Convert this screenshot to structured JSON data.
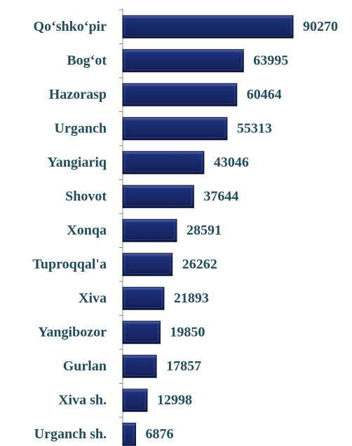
{
  "chart_data": {
    "type": "bar",
    "orientation": "horizontal",
    "categories": [
      "Qo‘shko‘pir",
      "Bog‘ot",
      "Hazorasp",
      "Urganch",
      "Yangiariq",
      "Shovot",
      "Xonqa",
      "Tuproqqal'a",
      "Xiva",
      "Yangibozor",
      "Gurlan",
      "Xiva sh.",
      "Urganch sh."
    ],
    "values": [
      90270,
      63995,
      60464,
      55313,
      43046,
      37644,
      28591,
      26262,
      21893,
      19850,
      17857,
      12998,
      6876
    ],
    "color": "#1c2f78"
  }
}
